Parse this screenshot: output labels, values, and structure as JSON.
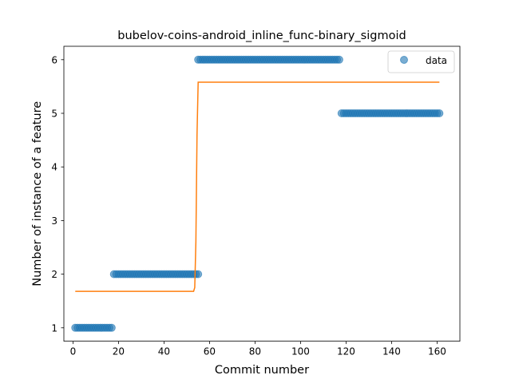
{
  "chart_data": {
    "type": "scatter",
    "title": "bubelov-coins-android_inline_func-binary_sigmoid",
    "xlabel": "Commit number",
    "ylabel": "Number of instance of a feature",
    "xlim": [
      -4,
      170
    ],
    "ylim": [
      0.75,
      6.25
    ],
    "xticks": [
      0,
      20,
      40,
      60,
      80,
      100,
      120,
      140,
      160
    ],
    "yticks": [
      1,
      2,
      3,
      4,
      5,
      6
    ],
    "grid": false,
    "legend": {
      "position": "top-right",
      "entries": [
        "data"
      ]
    },
    "colors": {
      "data": "#1f77b4",
      "fit": "#ff7f0e",
      "axes": "#000000"
    },
    "series": [
      {
        "name": "data",
        "kind": "scatter",
        "segments": [
          {
            "x_start": 1,
            "x_end": 17,
            "y": 1
          },
          {
            "x_start": 18,
            "x_end": 55,
            "y": 2
          },
          {
            "x_start": 55,
            "x_end": 117,
            "y": 6
          },
          {
            "x_start": 118,
            "x_end": 161,
            "y": 5
          }
        ]
      },
      {
        "kind": "line",
        "x": [
          1,
          53,
          53.5,
          54,
          54.5,
          55,
          161
        ],
        "y": [
          1.68,
          1.68,
          1.75,
          2.6,
          4.6,
          5.58,
          5.58
        ]
      }
    ]
  }
}
